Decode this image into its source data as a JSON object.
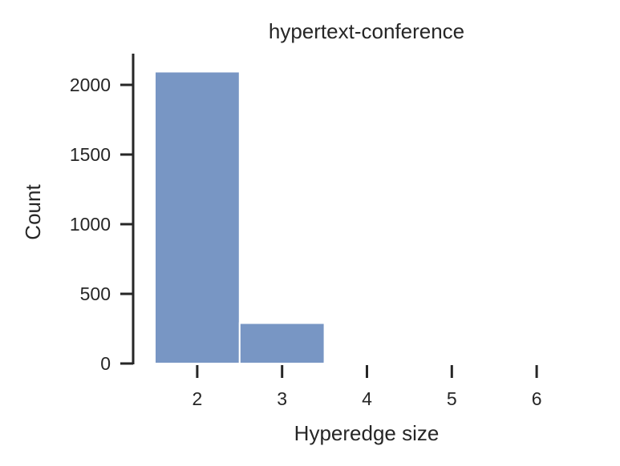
{
  "chart_data": {
    "type": "bar",
    "title": "hypertext-conference",
    "xlabel": "Hyperedge size",
    "ylabel": "Count",
    "categories": [
      2,
      3,
      4,
      5,
      6
    ],
    "values": [
      2095,
      290,
      8,
      0,
      0
    ],
    "xlim": [
      1.5,
      6.5
    ],
    "ylim": [
      0,
      2200
    ],
    "xticks": [
      2,
      3,
      4,
      5,
      6
    ],
    "yticks": [
      0,
      500,
      1000,
      1500,
      2000
    ],
    "bar_color": "#7896c4",
    "axis_color": "#262626",
    "grid": false,
    "legend": "none"
  }
}
